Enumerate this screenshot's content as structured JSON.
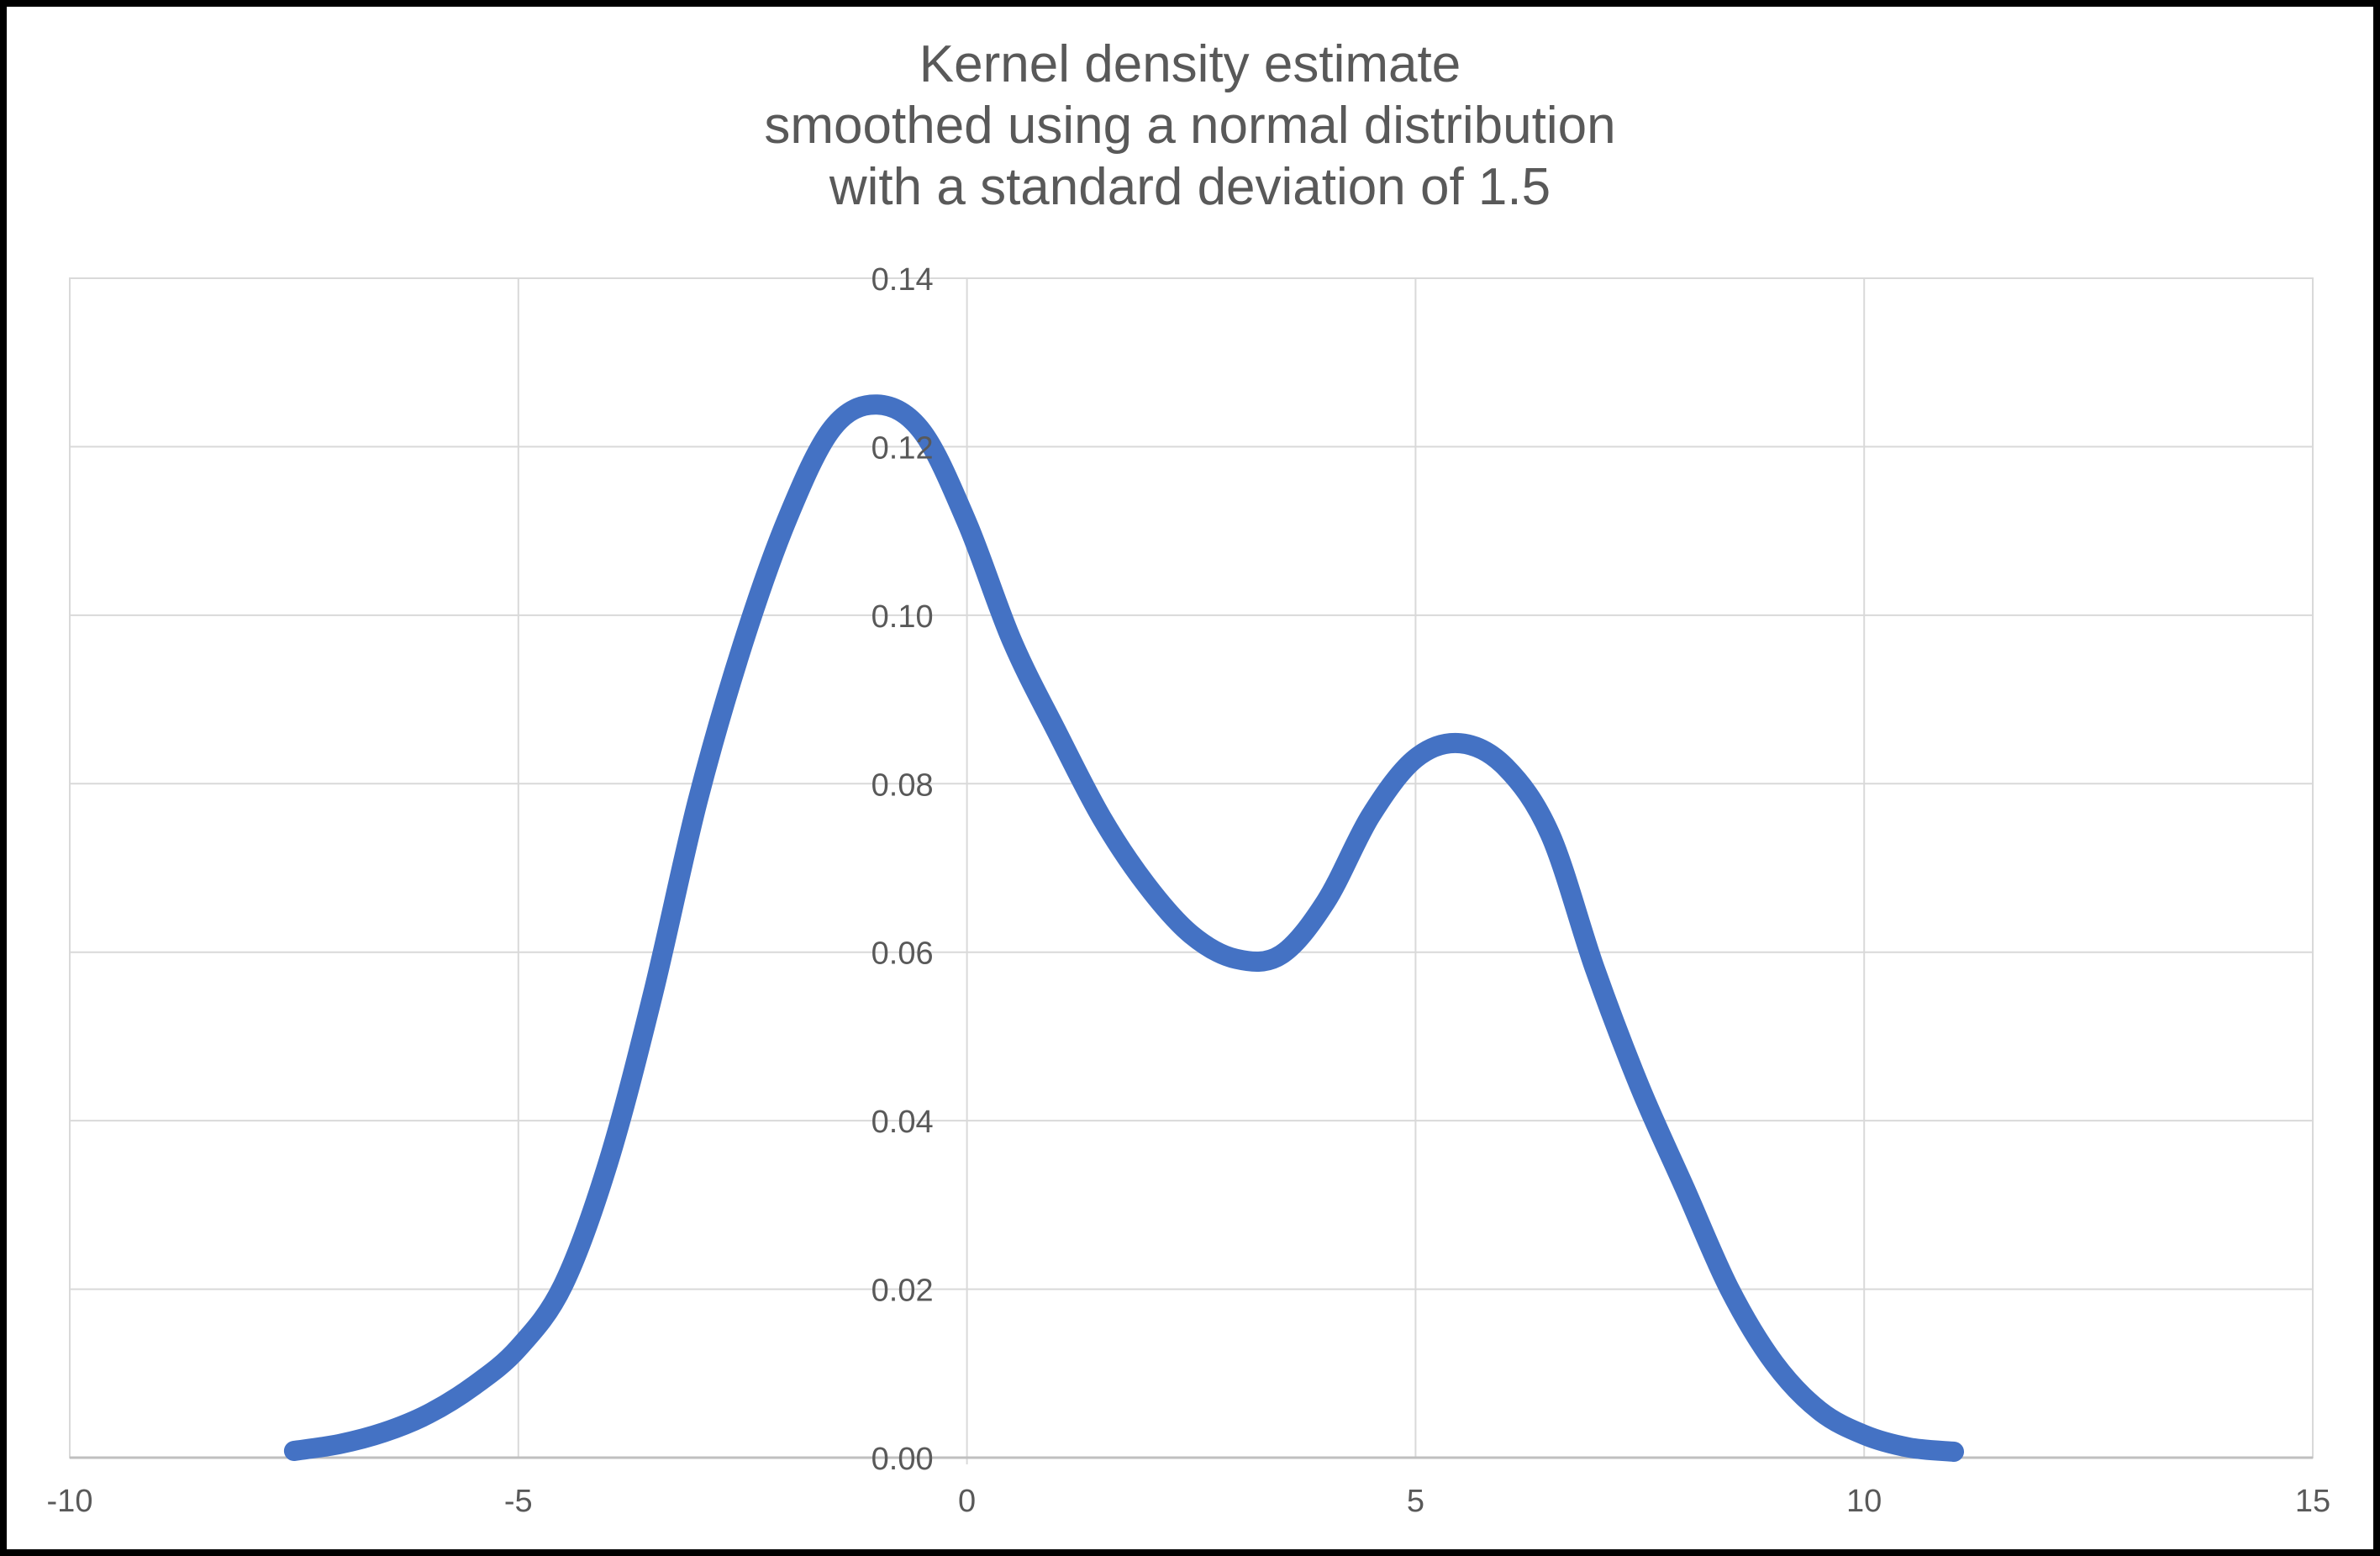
{
  "title": {
    "lines": [
      "Kernel density estimate",
      "smoothed using a normal distribution",
      "with a standard deviation of 1.5"
    ]
  },
  "colors": {
    "curve": "#4472C4",
    "gridline": "#D9D9D9",
    "axis_line": "#BFBFBF",
    "text": "#595959",
    "background": "#FFFFFF",
    "frame": "#000000"
  },
  "chart_data": {
    "type": "line",
    "title": "Kernel density estimate smoothed using a normal distribution with a standard deviation of 1.5",
    "xlabel": "",
    "ylabel": "",
    "x_range": [
      -10,
      15
    ],
    "y_range": [
      0,
      0.14
    ],
    "x_tick_values": [
      -10,
      -5,
      0,
      5,
      10,
      15
    ],
    "x_tick_labels": [
      "-10",
      "-5",
      "0",
      "5",
      "10",
      "15"
    ],
    "y_tick_values": [
      0,
      0.02,
      0.04,
      0.06,
      0.08,
      0.1,
      0.12,
      0.14
    ],
    "y_tick_labels": [
      "0.00",
      "0.02",
      "0.04",
      "0.06",
      "0.08",
      "0.10",
      "0.12",
      "0.14"
    ],
    "grid": true,
    "legend": "none",
    "series": [
      {
        "name": "Kernel density estimate",
        "color": "#4472C4",
        "points": [
          [
            -7.5,
            0.0008
          ],
          [
            -7.0,
            0.0016
          ],
          [
            -6.5,
            0.003
          ],
          [
            -6.0,
            0.0052
          ],
          [
            -5.5,
            0.0085
          ],
          [
            -5.0,
            0.013
          ],
          [
            -4.5,
            0.0205
          ],
          [
            -4.0,
            0.035
          ],
          [
            -3.5,
            0.055
          ],
          [
            -3.0,
            0.078
          ],
          [
            -2.5,
            0.0965
          ],
          [
            -2.0,
            0.1115
          ],
          [
            -1.5,
            0.1222
          ],
          [
            -1.0,
            0.125
          ],
          [
            -0.5,
            0.1218
          ],
          [
            0.0,
            0.111
          ],
          [
            0.5,
            0.097
          ],
          [
            1.0,
            0.0862
          ],
          [
            1.5,
            0.076
          ],
          [
            2.0,
            0.068
          ],
          [
            2.5,
            0.0621
          ],
          [
            3.0,
            0.0592
          ],
          [
            3.5,
            0.0597
          ],
          [
            4.0,
            0.066
          ],
          [
            4.5,
            0.0762
          ],
          [
            5.0,
            0.083
          ],
          [
            5.5,
            0.0848
          ],
          [
            6.0,
            0.082
          ],
          [
            6.5,
            0.074
          ],
          [
            7.0,
            0.058
          ],
          [
            7.5,
            0.044
          ],
          [
            8.0,
            0.032
          ],
          [
            8.5,
            0.02
          ],
          [
            9.0,
            0.0112
          ],
          [
            9.5,
            0.0056
          ],
          [
            10.0,
            0.0027
          ],
          [
            10.5,
            0.0012
          ],
          [
            11.0,
            0.0007
          ]
        ]
      }
    ]
  }
}
